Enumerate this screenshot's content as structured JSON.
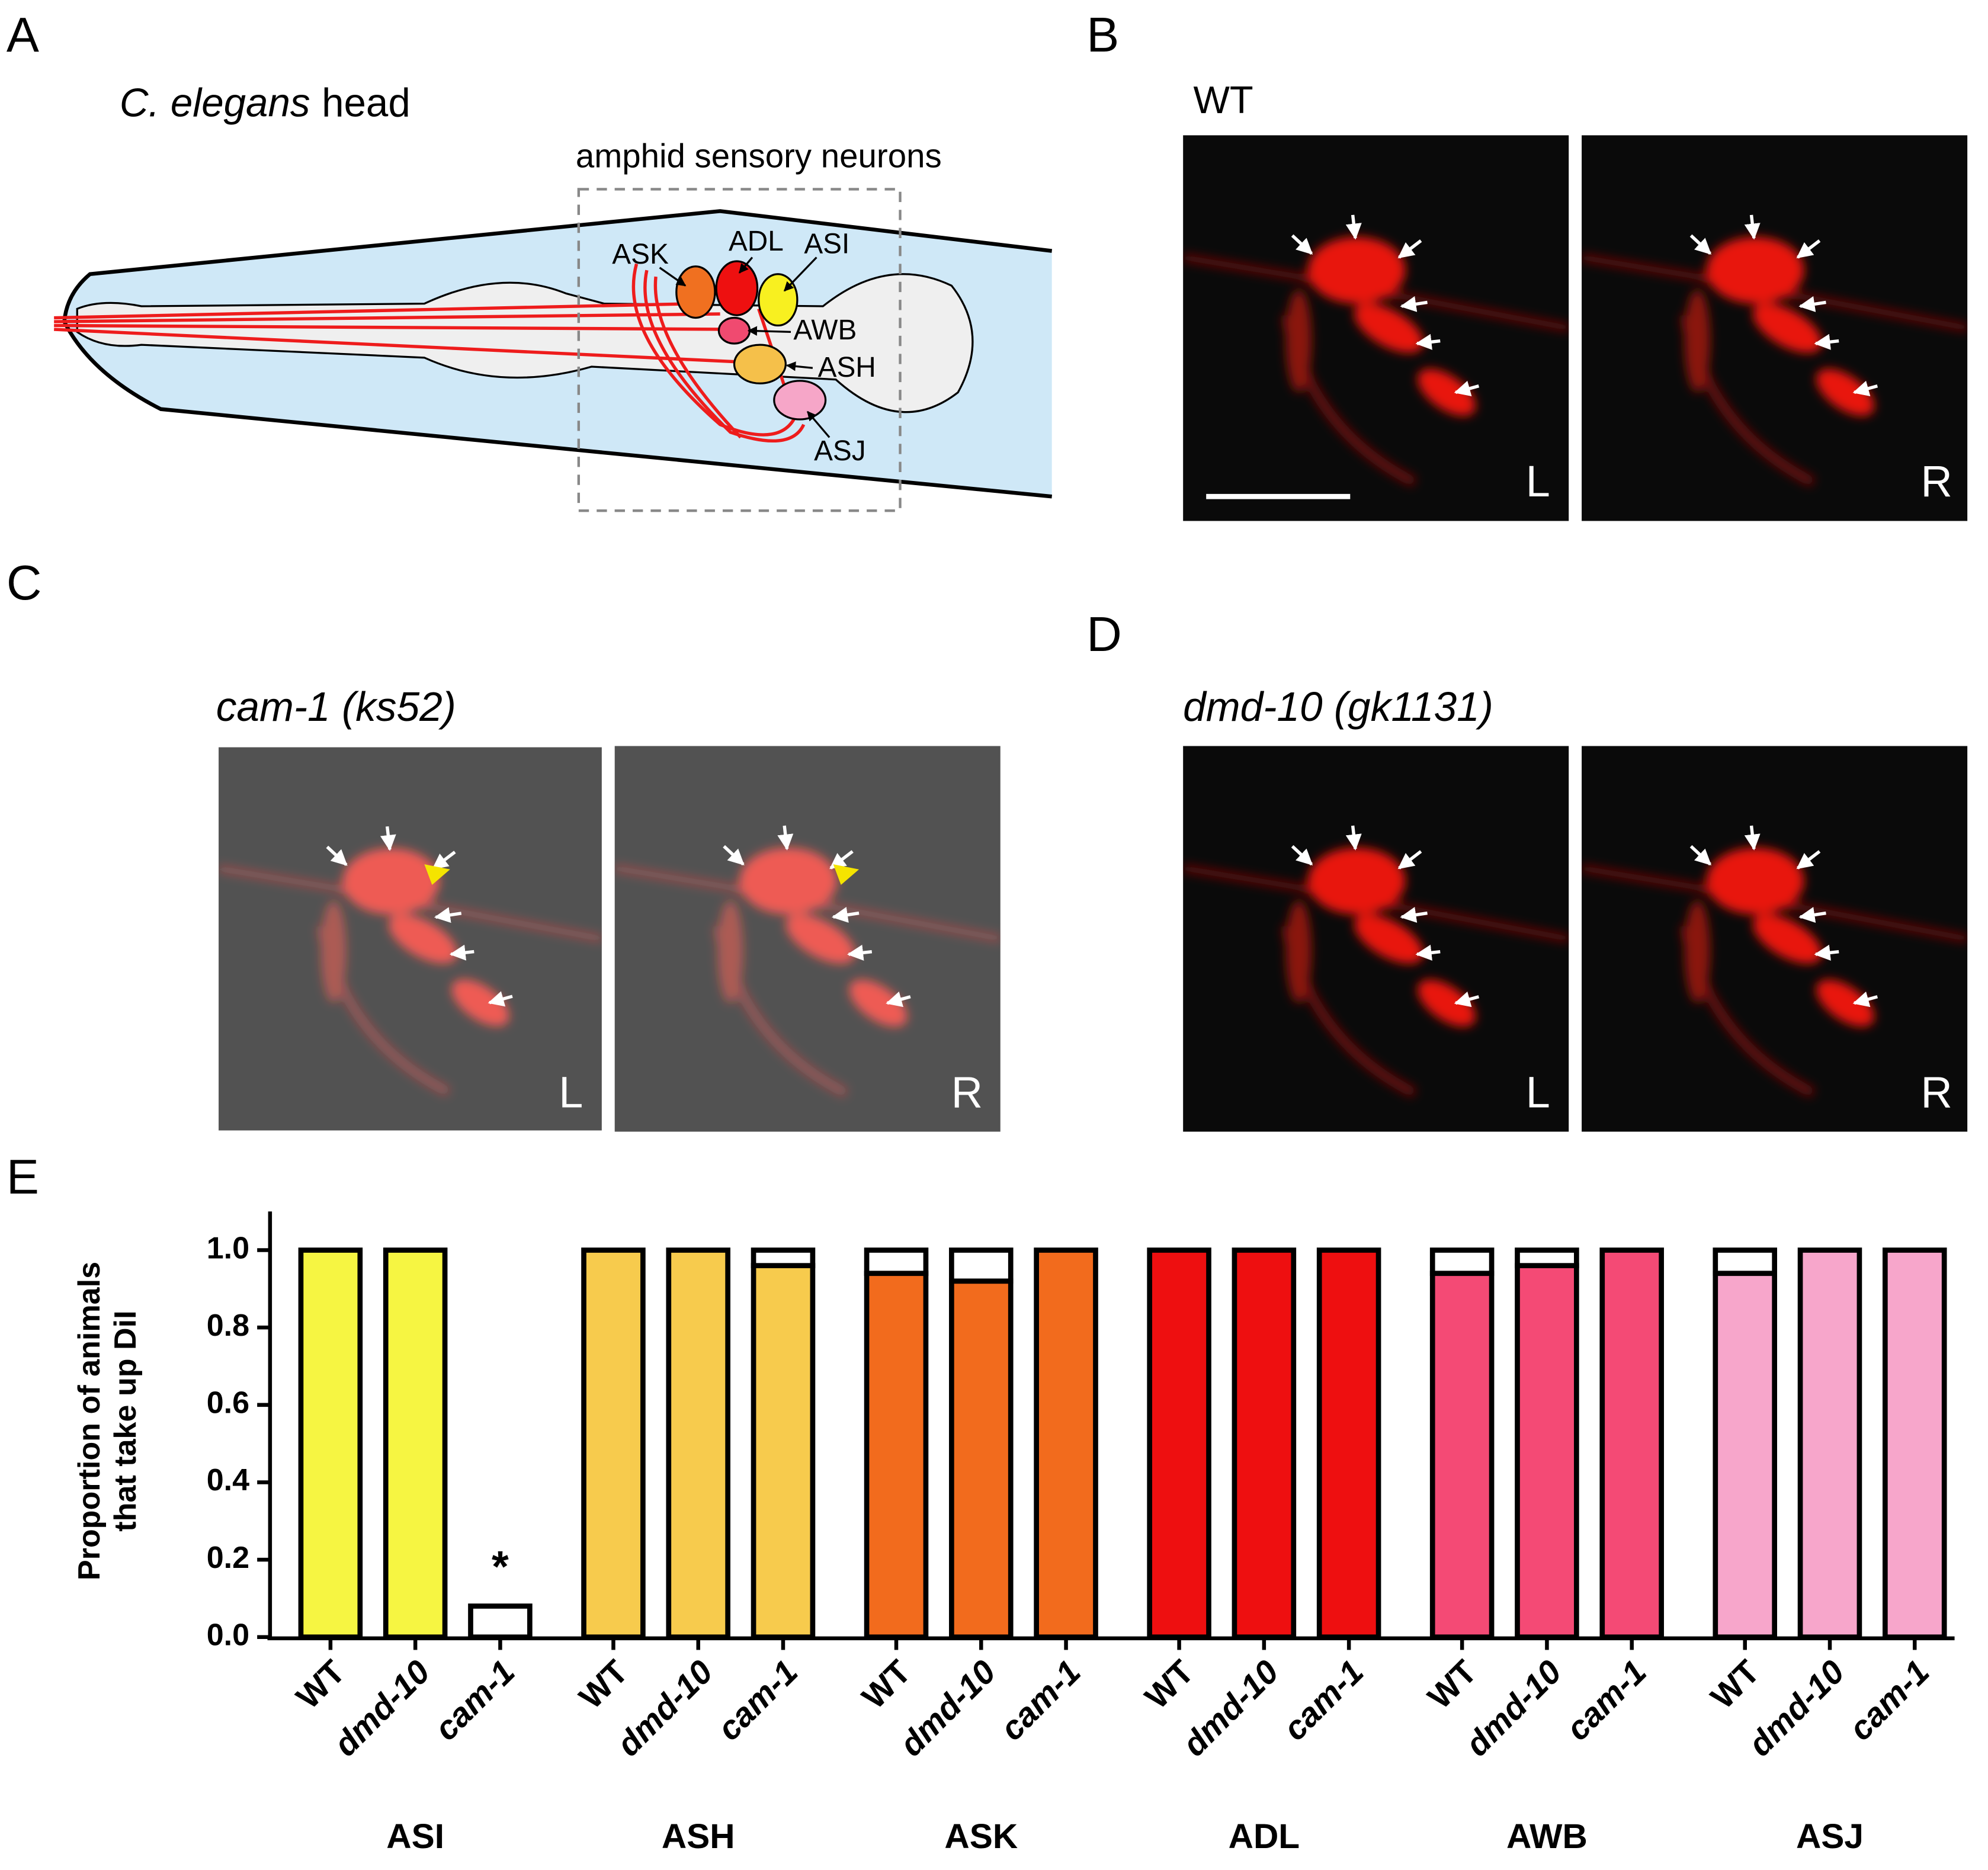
{
  "panels": {
    "A": {
      "label": "A",
      "title": [
        "C. elegans",
        "head"
      ],
      "box_label": "amphid sensory neurons",
      "neurons": [
        "ASK",
        "ADL",
        "ASI",
        "AWB",
        "ASH",
        "ASJ"
      ]
    },
    "B": {
      "label": "B",
      "genotype": "WT",
      "left": "L",
      "right": "R"
    },
    "C": {
      "label": "C",
      "genotype": "cam-1 (ks52)",
      "left": "L",
      "right": "R"
    },
    "D": {
      "label": "D",
      "genotype": "dmd-10 (gk1131)",
      "left": "L",
      "right": "R"
    },
    "E": {
      "label": "E"
    }
  },
  "chart_data": {
    "type": "stacked-bar",
    "ylabel": [
      "Proportion of animals",
      "that take up DiI"
    ],
    "ylim": [
      0,
      1.1
    ],
    "yticks": [
      {
        "value": 0,
        "label": "0.0"
      },
      {
        "value": 0.2,
        "label": "0.2"
      },
      {
        "value": 0.4,
        "label": "0.4"
      },
      {
        "value": 0.6,
        "label": "0.6"
      },
      {
        "value": 0.8,
        "label": "0.8"
      },
      {
        "value": 1,
        "label": "1.0"
      }
    ],
    "annotation": "*",
    "groups": [
      {
        "name": "ASI",
        "color": "#f6f542",
        "categories": [
          "WT",
          "dmd-10",
          "cam-1"
        ],
        "values": [
          1,
          1,
          0
        ],
        "remainder": [
          0,
          0,
          0.08
        ]
      },
      {
        "name": "ASH",
        "color": "#f7cb4d",
        "categories": [
          "WT",
          "dmd-10",
          "cam-1"
        ],
        "values": [
          1,
          1,
          0.96
        ],
        "remainder": [
          0,
          0,
          0.04
        ]
      },
      {
        "name": "ASK",
        "color": "#f26b1d",
        "categories": [
          "WT",
          "dmd-10",
          "cam-1"
        ],
        "values": [
          0.94,
          0.92,
          1
        ],
        "remainder": [
          0.06,
          0.08,
          0
        ]
      },
      {
        "name": "ADL",
        "color": "#ee0f10",
        "categories": [
          "WT",
          "dmd-10",
          "cam-1"
        ],
        "values": [
          1,
          1,
          1
        ],
        "remainder": [
          0,
          0,
          0
        ]
      },
      {
        "name": "AWB",
        "color": "#f44a75",
        "categories": [
          "WT",
          "dmd-10",
          "cam-1"
        ],
        "values": [
          0.94,
          0.96,
          1
        ],
        "remainder": [
          0.06,
          0.04,
          0
        ]
      },
      {
        "name": "ASJ",
        "color": "#f7a6cb",
        "categories": [
          "WT",
          "dmd-10",
          "cam-1"
        ],
        "values": [
          0.94,
          1,
          1
        ],
        "remainder": [
          0.06,
          0,
          0
        ]
      }
    ]
  }
}
